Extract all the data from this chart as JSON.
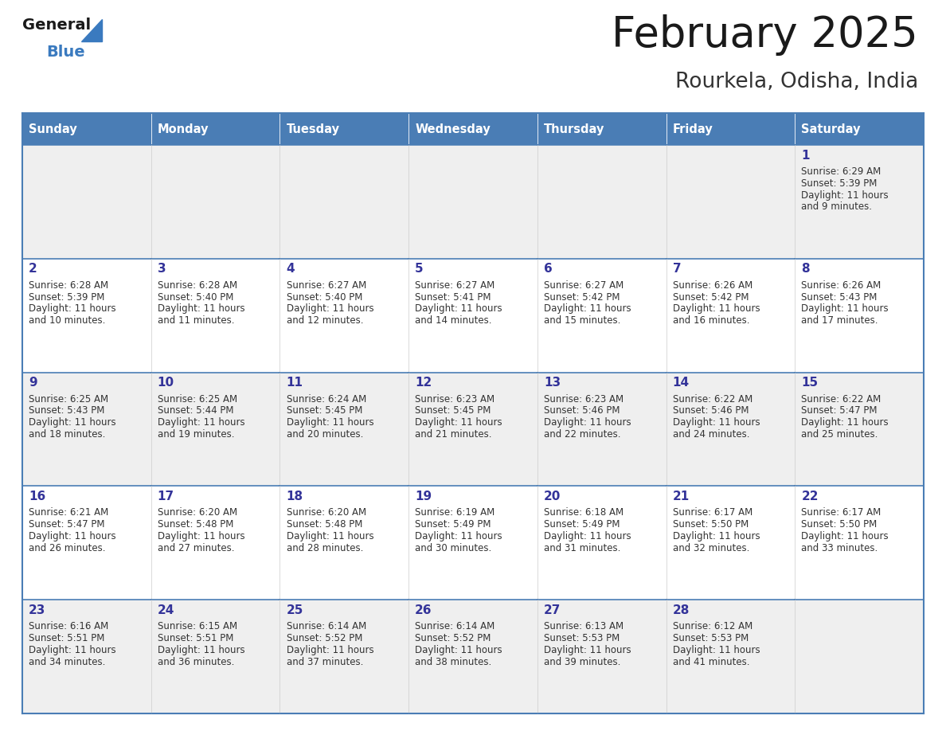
{
  "title": "February 2025",
  "subtitle": "Rourkela, Odisha, India",
  "header_bg": "#4a7db5",
  "header_text_color": "#ffffff",
  "day_names": [
    "Sunday",
    "Monday",
    "Tuesday",
    "Wednesday",
    "Thursday",
    "Friday",
    "Saturday"
  ],
  "title_color": "#1a1a1a",
  "subtitle_color": "#333333",
  "cell_bg_odd": "#efefef",
  "cell_bg_even": "#ffffff",
  "cell_border_top_color": "#4a7db5",
  "day_num_color": "#333399",
  "info_text_color": "#333333",
  "logo_general_color": "#1a1a1a",
  "logo_blue_color": "#3a7abf",
  "calendar_data": [
    [
      null,
      null,
      null,
      null,
      null,
      null,
      {
        "day": 1,
        "sunrise": "6:29 AM",
        "sunset": "5:39 PM",
        "daylight_hours": 11,
        "daylight_minutes": 9
      }
    ],
    [
      {
        "day": 2,
        "sunrise": "6:28 AM",
        "sunset": "5:39 PM",
        "daylight_hours": 11,
        "daylight_minutes": 10
      },
      {
        "day": 3,
        "sunrise": "6:28 AM",
        "sunset": "5:40 PM",
        "daylight_hours": 11,
        "daylight_minutes": 11
      },
      {
        "day": 4,
        "sunrise": "6:27 AM",
        "sunset": "5:40 PM",
        "daylight_hours": 11,
        "daylight_minutes": 12
      },
      {
        "day": 5,
        "sunrise": "6:27 AM",
        "sunset": "5:41 PM",
        "daylight_hours": 11,
        "daylight_minutes": 14
      },
      {
        "day": 6,
        "sunrise": "6:27 AM",
        "sunset": "5:42 PM",
        "daylight_hours": 11,
        "daylight_minutes": 15
      },
      {
        "day": 7,
        "sunrise": "6:26 AM",
        "sunset": "5:42 PM",
        "daylight_hours": 11,
        "daylight_minutes": 16
      },
      {
        "day": 8,
        "sunrise": "6:26 AM",
        "sunset": "5:43 PM",
        "daylight_hours": 11,
        "daylight_minutes": 17
      }
    ],
    [
      {
        "day": 9,
        "sunrise": "6:25 AM",
        "sunset": "5:43 PM",
        "daylight_hours": 11,
        "daylight_minutes": 18
      },
      {
        "day": 10,
        "sunrise": "6:25 AM",
        "sunset": "5:44 PM",
        "daylight_hours": 11,
        "daylight_minutes": 19
      },
      {
        "day": 11,
        "sunrise": "6:24 AM",
        "sunset": "5:45 PM",
        "daylight_hours": 11,
        "daylight_minutes": 20
      },
      {
        "day": 12,
        "sunrise": "6:23 AM",
        "sunset": "5:45 PM",
        "daylight_hours": 11,
        "daylight_minutes": 21
      },
      {
        "day": 13,
        "sunrise": "6:23 AM",
        "sunset": "5:46 PM",
        "daylight_hours": 11,
        "daylight_minutes": 22
      },
      {
        "day": 14,
        "sunrise": "6:22 AM",
        "sunset": "5:46 PM",
        "daylight_hours": 11,
        "daylight_minutes": 24
      },
      {
        "day": 15,
        "sunrise": "6:22 AM",
        "sunset": "5:47 PM",
        "daylight_hours": 11,
        "daylight_minutes": 25
      }
    ],
    [
      {
        "day": 16,
        "sunrise": "6:21 AM",
        "sunset": "5:47 PM",
        "daylight_hours": 11,
        "daylight_minutes": 26
      },
      {
        "day": 17,
        "sunrise": "6:20 AM",
        "sunset": "5:48 PM",
        "daylight_hours": 11,
        "daylight_minutes": 27
      },
      {
        "day": 18,
        "sunrise": "6:20 AM",
        "sunset": "5:48 PM",
        "daylight_hours": 11,
        "daylight_minutes": 28
      },
      {
        "day": 19,
        "sunrise": "6:19 AM",
        "sunset": "5:49 PM",
        "daylight_hours": 11,
        "daylight_minutes": 30
      },
      {
        "day": 20,
        "sunrise": "6:18 AM",
        "sunset": "5:49 PM",
        "daylight_hours": 11,
        "daylight_minutes": 31
      },
      {
        "day": 21,
        "sunrise": "6:17 AM",
        "sunset": "5:50 PM",
        "daylight_hours": 11,
        "daylight_minutes": 32
      },
      {
        "day": 22,
        "sunrise": "6:17 AM",
        "sunset": "5:50 PM",
        "daylight_hours": 11,
        "daylight_minutes": 33
      }
    ],
    [
      {
        "day": 23,
        "sunrise": "6:16 AM",
        "sunset": "5:51 PM",
        "daylight_hours": 11,
        "daylight_minutes": 34
      },
      {
        "day": 24,
        "sunrise": "6:15 AM",
        "sunset": "5:51 PM",
        "daylight_hours": 11,
        "daylight_minutes": 36
      },
      {
        "day": 25,
        "sunrise": "6:14 AM",
        "sunset": "5:52 PM",
        "daylight_hours": 11,
        "daylight_minutes": 37
      },
      {
        "day": 26,
        "sunrise": "6:14 AM",
        "sunset": "5:52 PM",
        "daylight_hours": 11,
        "daylight_minutes": 38
      },
      {
        "day": 27,
        "sunrise": "6:13 AM",
        "sunset": "5:53 PM",
        "daylight_hours": 11,
        "daylight_minutes": 39
      },
      {
        "day": 28,
        "sunrise": "6:12 AM",
        "sunset": "5:53 PM",
        "daylight_hours": 11,
        "daylight_minutes": 41
      },
      null
    ]
  ]
}
